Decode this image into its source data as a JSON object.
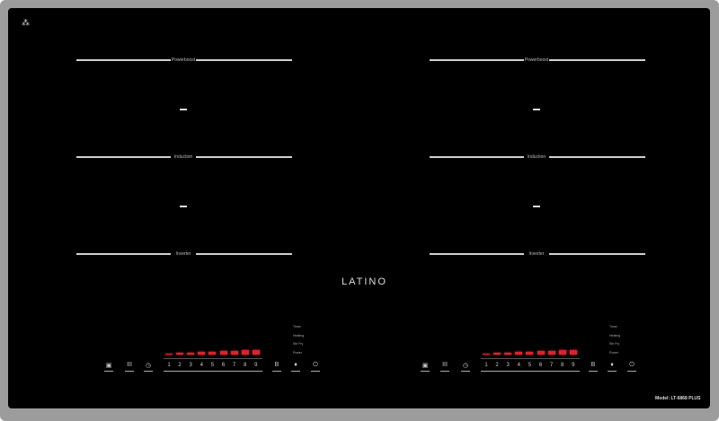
{
  "brand": "LATINO",
  "model": "Model: LT-6868 PLUS",
  "corner_icon": "child-lock-symbol-icon",
  "zones": {
    "labels": [
      "Powerboost",
      "Induction",
      "Inverter"
    ],
    "power_display": [
      "—",
      "—"
    ]
  },
  "controls": {
    "icons": [
      "lock-icon",
      "heat-levels-icon",
      "timer-icon",
      "boost-icon",
      "flame-icon",
      "power-icon"
    ],
    "icon_glyphs": [
      "▣",
      "III",
      "◷",
      "B",
      "♦",
      "⏻"
    ],
    "levels": [
      "1",
      "2",
      "3",
      "4",
      "5",
      "6",
      "7",
      "8",
      "9"
    ],
    "level_bars_lit": 9,
    "modes": [
      "Timer",
      "Heating",
      "Stir Fry",
      "Power"
    ]
  },
  "colors": {
    "panel": "#000000",
    "frame": "#9c9c9c",
    "level_bar": "#e0202a"
  }
}
